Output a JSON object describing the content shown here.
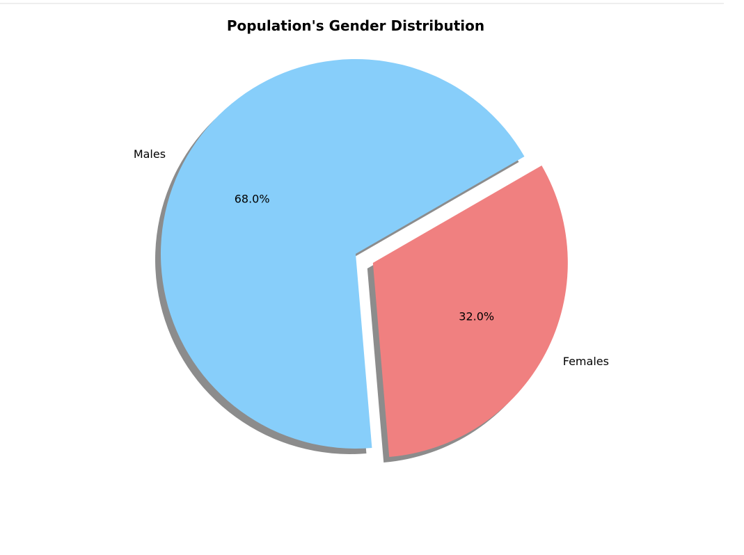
{
  "chart_data": {
    "type": "pie",
    "title": "Population's Gender Distribution",
    "labels": [
      "Males",
      "Females"
    ],
    "values": [
      68.0,
      32.0
    ],
    "percent_labels": [
      "68.0%",
      "32.0%"
    ],
    "colors": [
      "#87CEFA",
      "#F08080"
    ],
    "explode": [
      0,
      0.1
    ],
    "shadow": true,
    "start_angle_deg": 30,
    "counterclockwise": true
  }
}
